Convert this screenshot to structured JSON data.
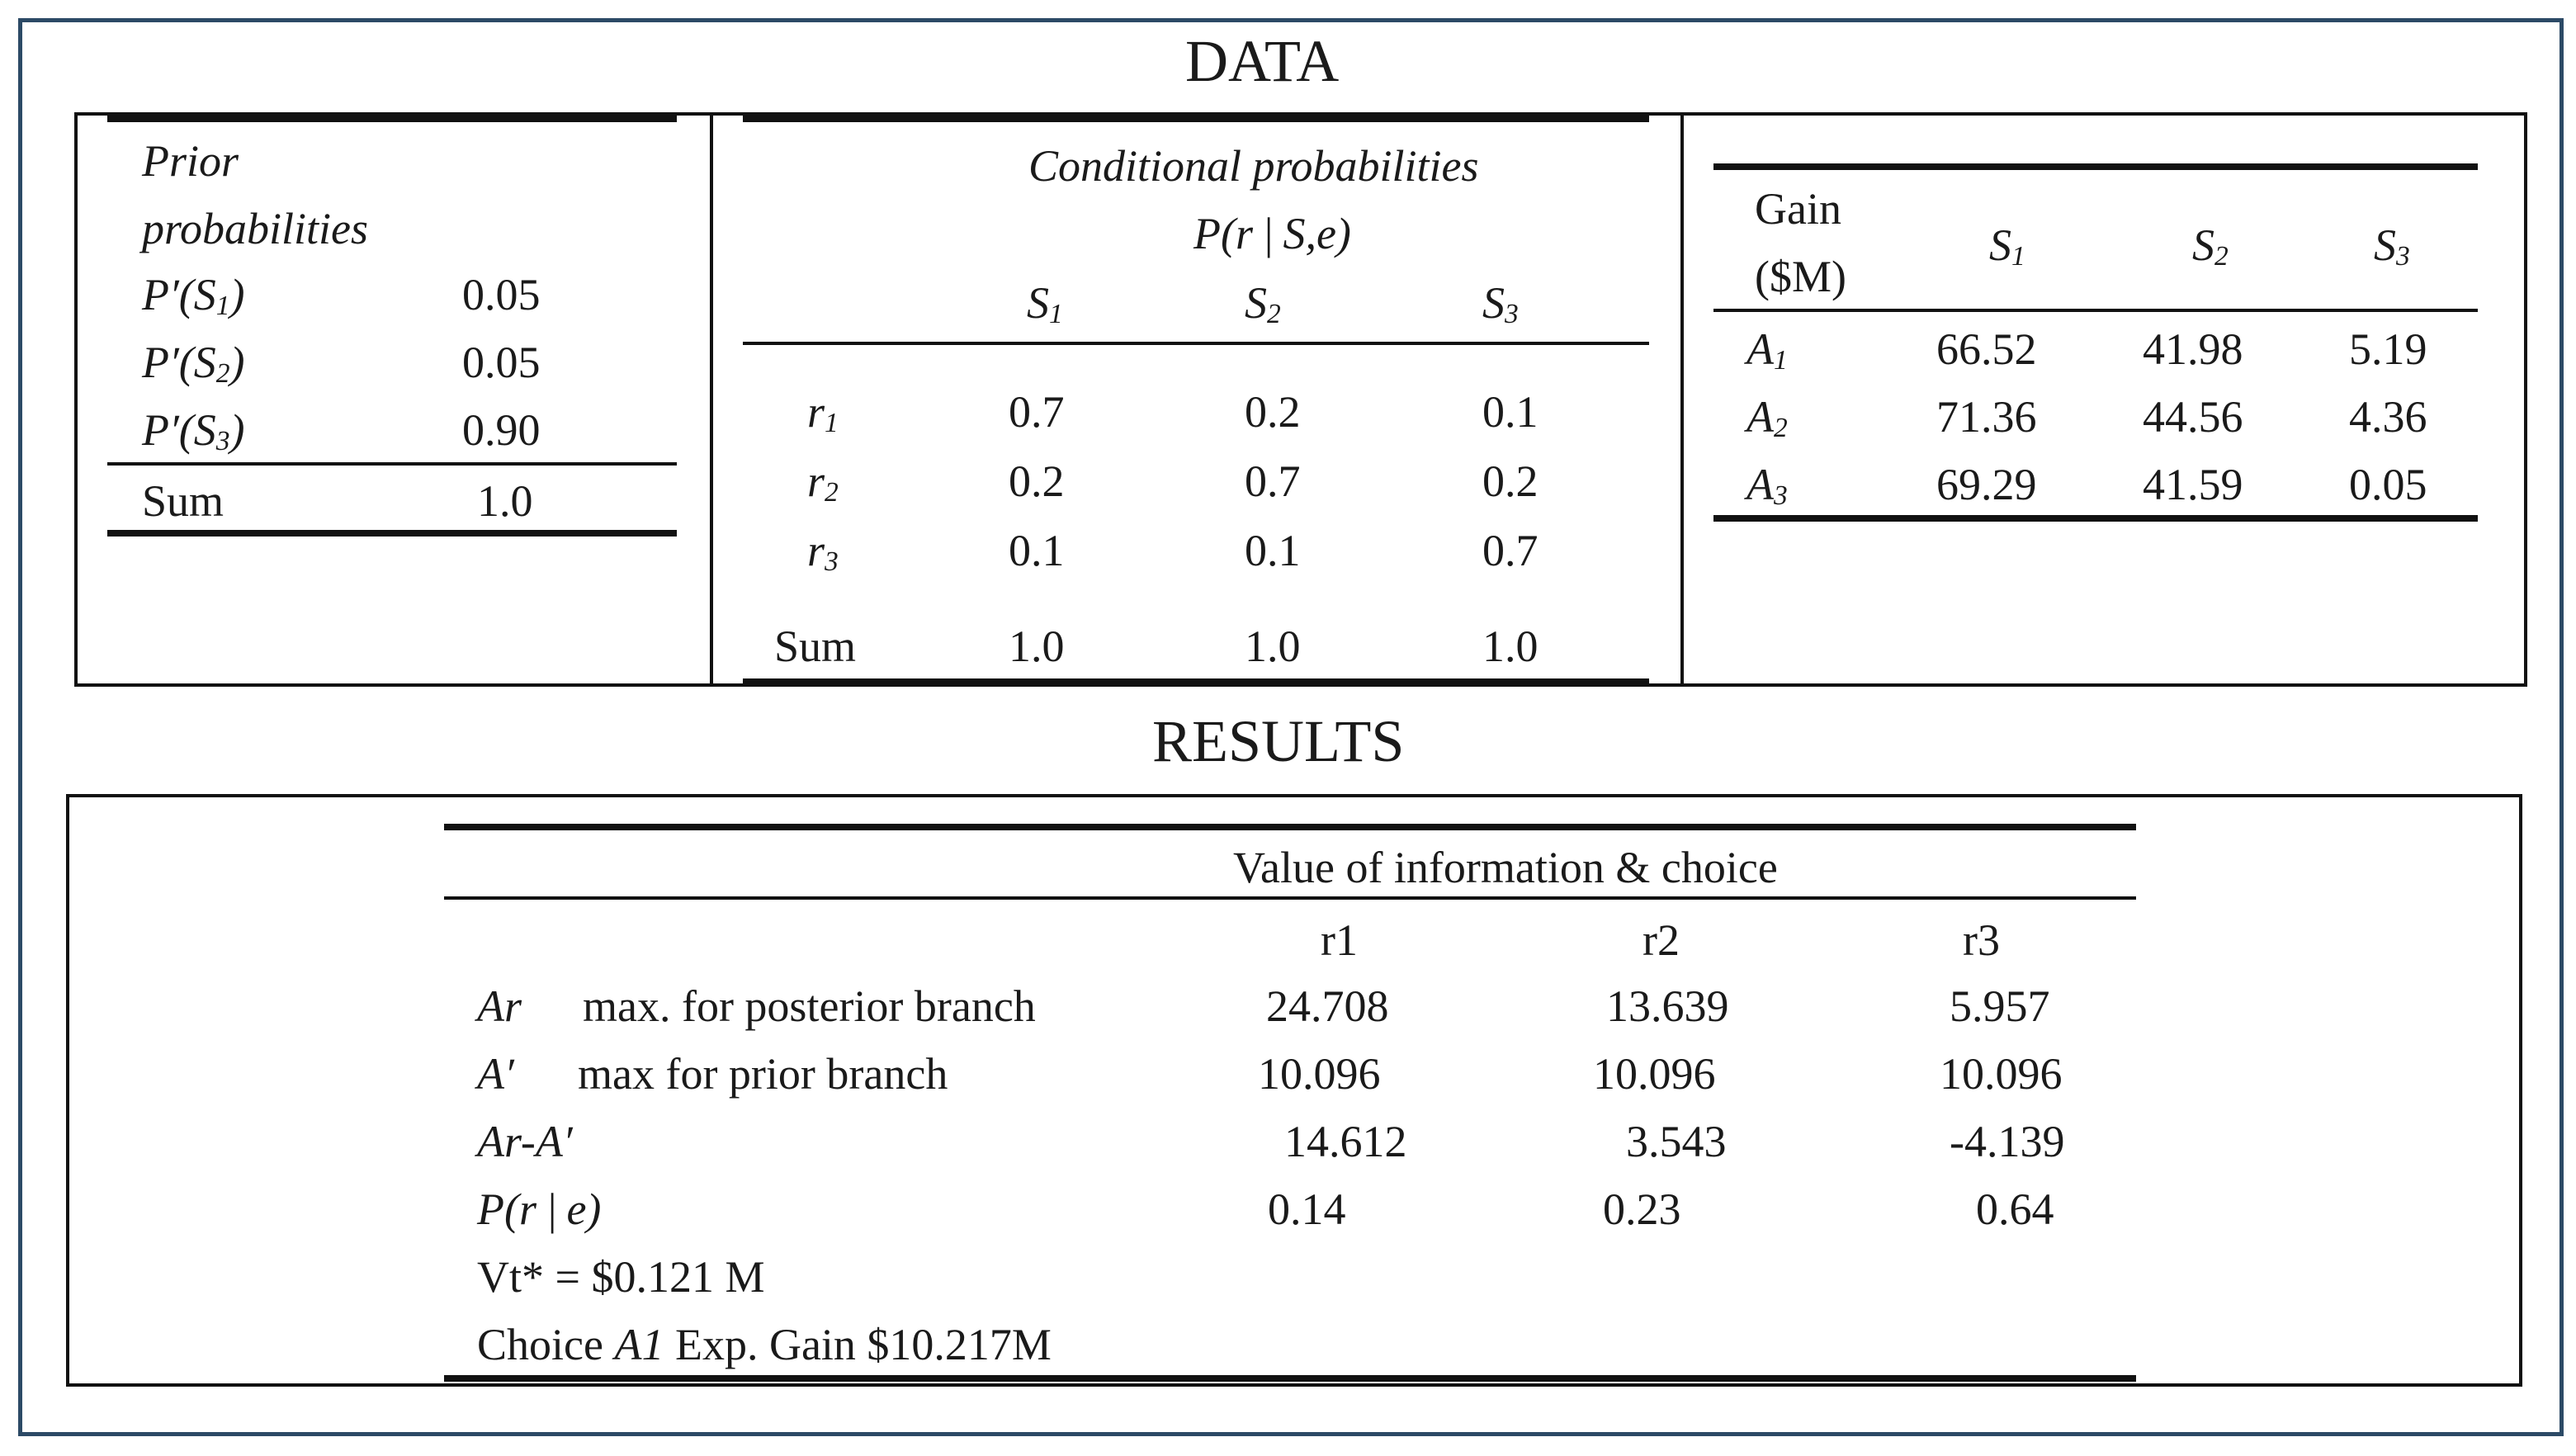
{
  "data_title": "DATA",
  "results_title": "RESULTS",
  "prior": {
    "header_line1": "Prior",
    "header_line2": "probabilities",
    "rows": [
      {
        "label": "P′(S",
        "sub": "1",
        "close": ")",
        "value": "0.05"
      },
      {
        "label": "P′(S",
        "sub": "2",
        "close": ")",
        "value": "0.05"
      },
      {
        "label": "P′(S",
        "sub": "3",
        "close": ")",
        "value": "0.90"
      }
    ],
    "sum_label": "Sum",
    "sum_value": "1.0"
  },
  "conditional": {
    "header_line1": "Conditional probabilities",
    "header_line2": "P(r | S,e)",
    "columns": [
      {
        "label": "S",
        "sub": "1"
      },
      {
        "label": "S",
        "sub": "2"
      },
      {
        "label": "S",
        "sub": "3"
      }
    ],
    "rows": [
      {
        "label": "r",
        "sub": "1",
        "values": [
          "0.7",
          "0.2",
          "0.1"
        ]
      },
      {
        "label": "r",
        "sub": "2",
        "values": [
          "0.2",
          "0.7",
          "0.2"
        ]
      },
      {
        "label": "r",
        "sub": "3",
        "values": [
          "0.1",
          "0.1",
          "0.7"
        ]
      }
    ],
    "sum_label": "Sum",
    "sum_values": [
      "1.0",
      "1.0",
      "1.0"
    ]
  },
  "gain": {
    "header_line1": "Gain",
    "header_line2": "($M)",
    "columns": [
      {
        "label": "S",
        "sub": "1"
      },
      {
        "label": "S",
        "sub": "2"
      },
      {
        "label": "S",
        "sub": "3"
      }
    ],
    "rows": [
      {
        "label": "A",
        "sub": "1",
        "values": [
          "66.52",
          "41.98",
          "5.19"
        ]
      },
      {
        "label": "A",
        "sub": "2",
        "values": [
          "71.36",
          "44.56",
          "4.36"
        ]
      },
      {
        "label": "A",
        "sub": "3",
        "values": [
          "69.29",
          "41.59",
          "0.05"
        ]
      }
    ]
  },
  "results": {
    "header": "Value of information & choice",
    "columns": [
      "r1",
      "r2",
      "r3"
    ],
    "rows": [
      {
        "sym": "Ar",
        "desc": "max. for posterior branch",
        "values": [
          "24.708",
          "13.639",
          "5.957"
        ]
      },
      {
        "sym": "A′",
        "desc": "max for prior branch",
        "values": [
          "10.096",
          "10.096",
          "10.096"
        ]
      },
      {
        "sym": "Ar-A′",
        "desc": "",
        "values": [
          "14.612",
          "3.543",
          "-4.139"
        ]
      },
      {
        "sym": "P(r | e)",
        "desc": "",
        "values": [
          "0.14",
          "0.23",
          "0.64"
        ]
      }
    ],
    "vt_label": "Vt* = $0.121 M",
    "choice_prefix": "Choice ",
    "choice_italic": "A1",
    "choice_suffix": " Exp. Gain $10.217M"
  }
}
